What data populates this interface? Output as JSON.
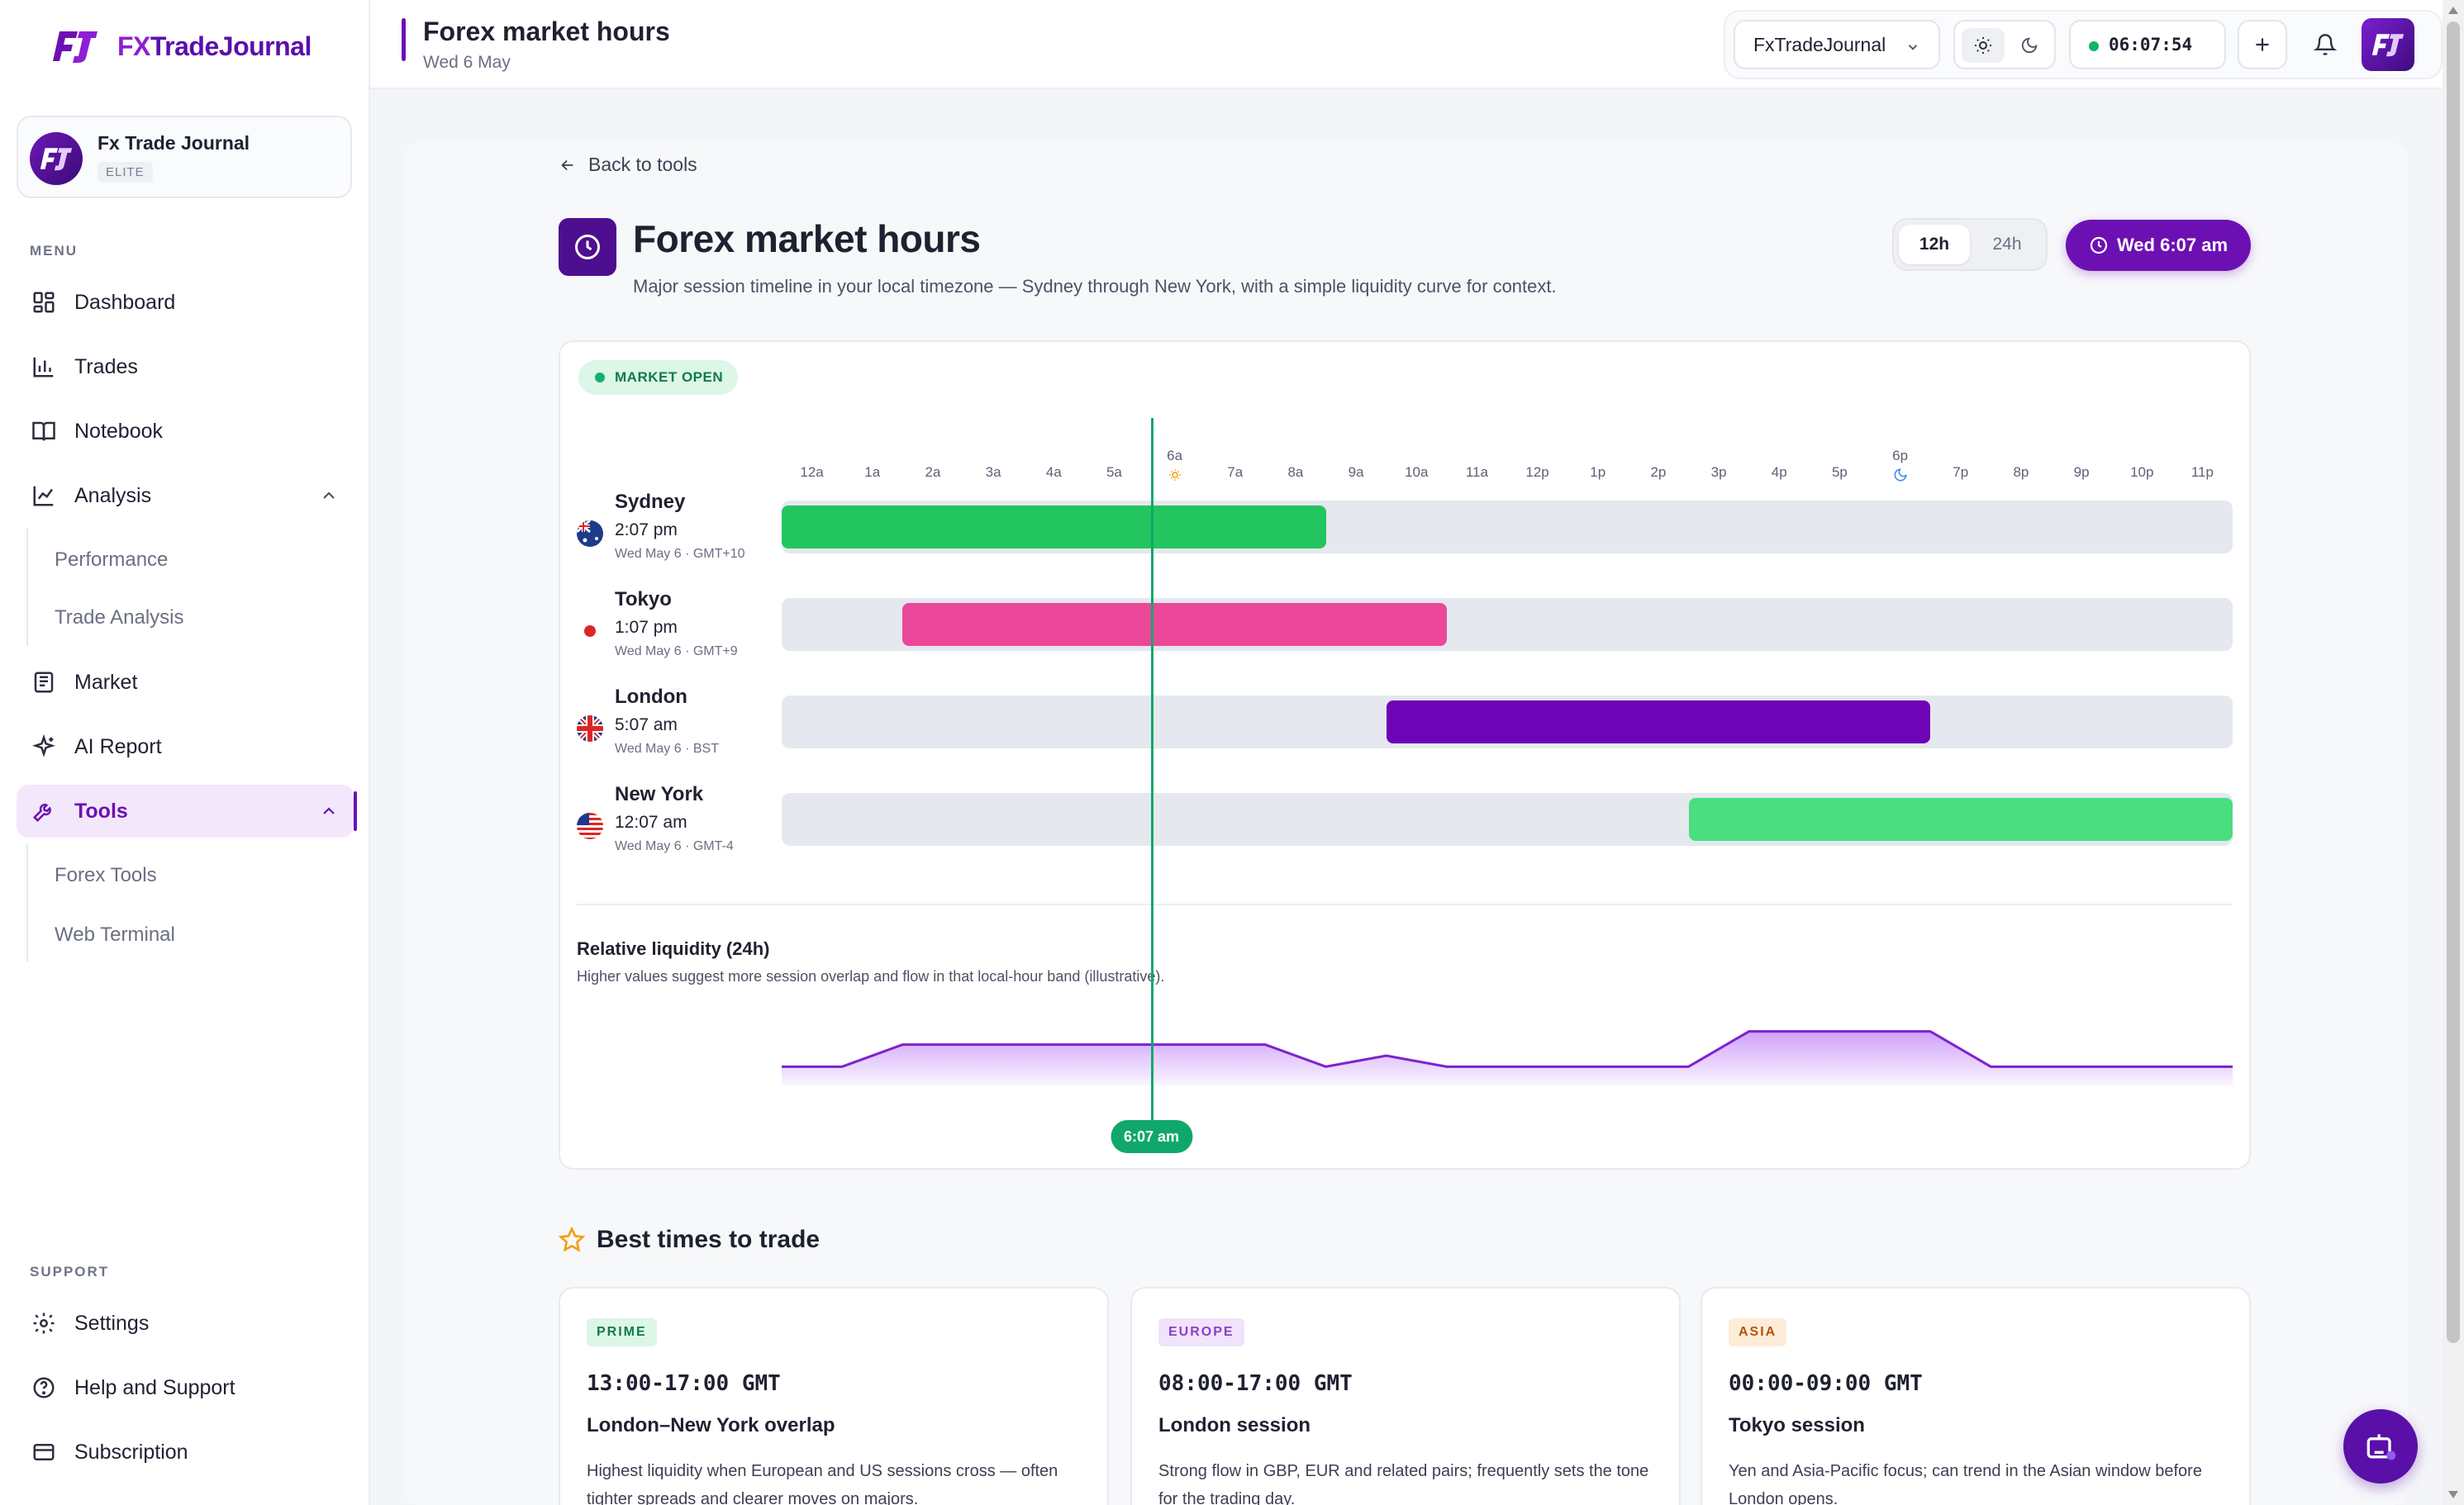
{
  "app": {
    "brand_fx": "FX",
    "brand_rest": "TradeJournal"
  },
  "account": {
    "name": "Fx Trade Journal",
    "tier": "ELITE"
  },
  "sidebar": {
    "menu_label": "MENU",
    "support_label": "SUPPORT",
    "items": [
      {
        "label": "Dashboard",
        "icon": "dashboard-icon"
      },
      {
        "label": "Trades",
        "icon": "bar-chart-icon"
      },
      {
        "label": "Notebook",
        "icon": "book-icon"
      },
      {
        "label": "Analysis",
        "icon": "line-chart-icon",
        "expanded": true
      },
      {
        "label": "Market",
        "icon": "newspaper-icon"
      },
      {
        "label": "AI Report",
        "icon": "sparkle-icon"
      },
      {
        "label": "Tools",
        "icon": "wrench-icon",
        "expanded": true,
        "active": true
      }
    ],
    "analysis_sub": [
      "Performance",
      "Trade Analysis"
    ],
    "tools_sub": [
      "Forex Tools",
      "Web Terminal"
    ],
    "support_items": [
      {
        "label": "Settings",
        "icon": "gear-icon"
      },
      {
        "label": "Help and Support",
        "icon": "help-icon"
      },
      {
        "label": "Subscription",
        "icon": "card-icon"
      }
    ]
  },
  "header": {
    "title": "Forex market hours",
    "date": "Wed 6 May",
    "account_select": "FxTradeJournal",
    "clock": "06:07:54"
  },
  "page": {
    "back_label": "Back to tools",
    "title": "Forex market hours",
    "description": "Major session timeline in your local timezone — Sydney through New York, with a simple liquidity curve for context.",
    "format_12h": "12h",
    "format_24h": "24h",
    "format_selected": "12h",
    "now_label": "Wed 6:07 am"
  },
  "timeline": {
    "status": "MARKET OPEN",
    "hours": [
      "12a",
      "1a",
      "2a",
      "3a",
      "4a",
      "5a",
      "6a",
      "7a",
      "8a",
      "9a",
      "10a",
      "11a",
      "12p",
      "1p",
      "2p",
      "3p",
      "4p",
      "5p",
      "6p",
      "7p",
      "8p",
      "9p",
      "10p",
      "11p"
    ],
    "now_hour": 6.117,
    "now_label": "6:07 am",
    "sessions": [
      {
        "name": "Sydney",
        "time": "2:07 pm",
        "zone": "Wed May 6 · GMT+10",
        "start": 0,
        "end": 9,
        "color": "#22c55e",
        "flag": "au-flag-icon"
      },
      {
        "name": "Tokyo",
        "time": "1:07 pm",
        "zone": "Wed May 6 · GMT+9",
        "start": 2,
        "end": 11,
        "color": "#ec4899",
        "flag": "jp-flag-icon"
      },
      {
        "name": "London",
        "time": "5:07 am",
        "zone": "Wed May 6 · BST",
        "start": 10,
        "end": 19,
        "color": "#6d04b6",
        "flag": "uk-flag-icon"
      },
      {
        "name": "New York",
        "time": "12:07 am",
        "zone": "Wed May 6 · GMT-4",
        "start": 15,
        "end": 24,
        "color": "#4ade80",
        "flag": "us-flag-icon"
      }
    ]
  },
  "liquidity": {
    "title": "Relative liquidity (24h)",
    "description": "Higher values suggest more session overlap and flow in that local-hour band (illustrative).",
    "values": [
      1,
      1,
      2,
      2,
      2,
      2,
      2,
      2,
      2,
      1,
      1.5,
      1,
      1,
      1,
      1,
      1,
      2.6,
      2.6,
      2.6,
      2.6,
      1,
      1,
      1,
      1,
      1
    ]
  },
  "best_times": {
    "title": "Best times to trade",
    "cards": [
      {
        "tag": "PRIME",
        "tag_color": "#0f7a4b",
        "tag_bg": "#dcf6e8",
        "time": "13:00-17:00 GMT",
        "session": "London–New York overlap",
        "description": "Highest liquidity when European and US sessions cross — often tighter spreads and clearer moves on majors."
      },
      {
        "tag": "EUROPE",
        "tag_color": "#8b3fc9",
        "tag_bg": "#f0e3fb",
        "time": "08:00-17:00 GMT",
        "session": "London session",
        "description": "Strong flow in GBP, EUR and related pairs; frequently sets the tone for the trading day."
      },
      {
        "tag": "ASIA",
        "tag_color": "#b45309",
        "tag_bg": "#fdecd8",
        "time": "00:00-09:00 GMT",
        "session": "Tokyo session",
        "description": "Yen and Asia-Pacific focus; can trend in the Asian window before London opens."
      }
    ]
  }
}
